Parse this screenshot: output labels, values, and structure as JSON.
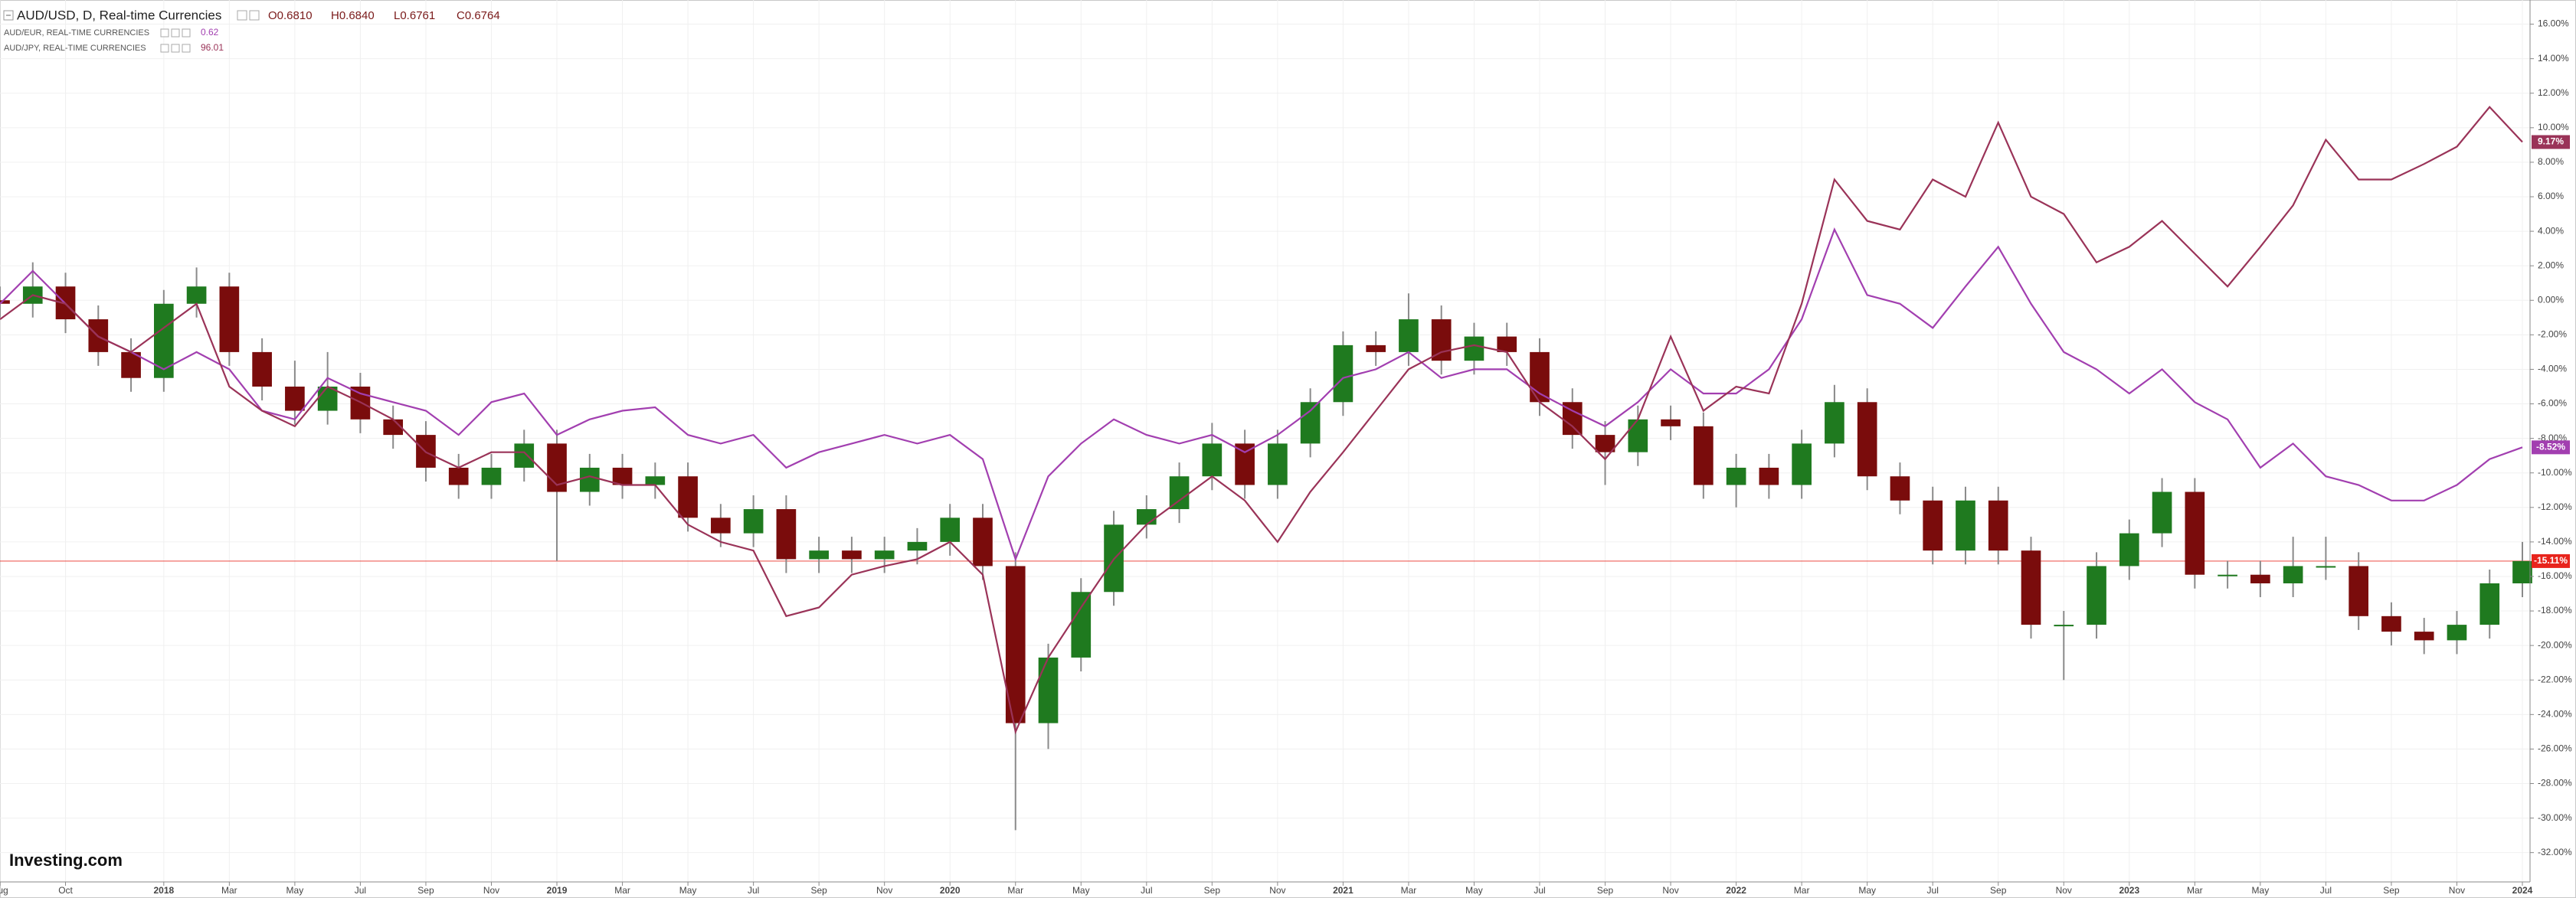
{
  "chart_data": {
    "type": "candlestick",
    "title": "AUD/USD, D, Real-time Currencies",
    "ohlc": [
      "O0.6810",
      "H0.6840",
      "L0.6761",
      "C0.6764"
    ],
    "watermark": "Investing.com",
    "grid": true,
    "x": [
      "2017-08",
      "2017-09",
      "2017-10",
      "2017-11",
      "2017-12",
      "2018-01",
      "2018-02",
      "2018-03",
      "2018-04",
      "2018-05",
      "2018-06",
      "2018-07",
      "2018-08",
      "2018-09",
      "2018-10",
      "2018-11",
      "2018-12",
      "2019-01",
      "2019-02",
      "2019-03",
      "2019-04",
      "2019-05",
      "2019-06",
      "2019-07",
      "2019-08",
      "2019-09",
      "2019-10",
      "2019-11",
      "2019-12",
      "2020-01",
      "2020-02",
      "2020-03",
      "2020-04",
      "2020-05",
      "2020-06",
      "2020-07",
      "2020-08",
      "2020-09",
      "2020-10",
      "2020-11",
      "2020-12",
      "2021-01",
      "2021-02",
      "2021-03",
      "2021-04",
      "2021-05",
      "2021-06",
      "2021-07",
      "2021-08",
      "2021-09",
      "2021-10",
      "2021-11",
      "2021-12",
      "2022-01",
      "2022-02",
      "2022-03",
      "2022-04",
      "2022-05",
      "2022-06",
      "2022-07",
      "2022-08",
      "2022-09",
      "2022-10",
      "2022-11",
      "2022-12",
      "2023-01",
      "2023-02",
      "2023-03",
      "2023-04",
      "2023-05",
      "2023-06",
      "2023-07",
      "2023-08",
      "2023-09",
      "2023-10",
      "2023-11",
      "2023-12",
      "2024-01"
    ],
    "xlim": [
      "2017-08",
      "2024-01"
    ],
    "xticks": [
      {
        "value": "2017-08",
        "label": "Aug"
      },
      {
        "value": "2017-10",
        "label": "Oct"
      },
      {
        "value": "2018-01",
        "label": "2018"
      },
      {
        "value": "2018-03",
        "label": "Mar"
      },
      {
        "value": "2018-05",
        "label": "May"
      },
      {
        "value": "2018-07",
        "label": "Jul"
      },
      {
        "value": "2018-09",
        "label": "Sep"
      },
      {
        "value": "2018-11",
        "label": "Nov"
      },
      {
        "value": "2019-01",
        "label": "2019"
      },
      {
        "value": "2019-03",
        "label": "Mar"
      },
      {
        "value": "2019-05",
        "label": "May"
      },
      {
        "value": "2019-07",
        "label": "Jul"
      },
      {
        "value": "2019-09",
        "label": "Sep"
      },
      {
        "value": "2019-11",
        "label": "Nov"
      },
      {
        "value": "2020-01",
        "label": "2020"
      },
      {
        "value": "2020-03",
        "label": "Mar"
      },
      {
        "value": "2020-05",
        "label": "May"
      },
      {
        "value": "2020-07",
        "label": "Jul"
      },
      {
        "value": "2020-09",
        "label": "Sep"
      },
      {
        "value": "2020-11",
        "label": "Nov"
      },
      {
        "value": "2021-01",
        "label": "2021"
      },
      {
        "value": "2021-03",
        "label": "Mar"
      },
      {
        "value": "2021-05",
        "label": "May"
      },
      {
        "value": "2021-07",
        "label": "Jul"
      },
      {
        "value": "2021-09",
        "label": "Sep"
      },
      {
        "value": "2021-11",
        "label": "Nov"
      },
      {
        "value": "2022-01",
        "label": "2022"
      },
      {
        "value": "2022-03",
        "label": "Mar"
      },
      {
        "value": "2022-05",
        "label": "May"
      },
      {
        "value": "2022-07",
        "label": "Jul"
      },
      {
        "value": "2022-09",
        "label": "Sep"
      },
      {
        "value": "2022-11",
        "label": "Nov"
      },
      {
        "value": "2023-01",
        "label": "2023"
      },
      {
        "value": "2023-03",
        "label": "Mar"
      },
      {
        "value": "2023-05",
        "label": "May"
      },
      {
        "value": "2023-07",
        "label": "Jul"
      },
      {
        "value": "2023-09",
        "label": "Sep"
      },
      {
        "value": "2023-11",
        "label": "Nov"
      },
      {
        "value": "2024-01",
        "label": "2024"
      }
    ],
    "ylim": [
      -33.7,
      17.4
    ],
    "yticks": [
      {
        "value": 16,
        "label": "16.00%"
      },
      {
        "value": 14,
        "label": "14.00%"
      },
      {
        "value": 12,
        "label": "12.00%"
      },
      {
        "value": 10,
        "label": "10.00%"
      },
      {
        "value": 8,
        "label": "8.00%"
      },
      {
        "value": 6,
        "label": "6.00%"
      },
      {
        "value": 4,
        "label": "4.00%"
      },
      {
        "value": 2,
        "label": "2.00%"
      },
      {
        "value": 0,
        "label": "0.00%"
      },
      {
        "value": -2,
        "label": "-2.00%"
      },
      {
        "value": -4,
        "label": "-4.00%"
      },
      {
        "value": -6,
        "label": "-6.00%"
      },
      {
        "value": -8,
        "label": "-8.00%"
      },
      {
        "value": -10,
        "label": "-10.00%"
      },
      {
        "value": -12,
        "label": "-12.00%"
      },
      {
        "value": -14,
        "label": "-14.00%"
      },
      {
        "value": -16,
        "label": "-16.00%"
      },
      {
        "value": -18,
        "label": "-18.00%"
      },
      {
        "value": -20,
        "label": "-20.00%"
      },
      {
        "value": -22,
        "label": "-22.00%"
      },
      {
        "value": -24,
        "label": "-24.00%"
      },
      {
        "value": -26,
        "label": "-26.00%"
      },
      {
        "value": -28,
        "label": "-28.00%"
      },
      {
        "value": -30,
        "label": "-30.00%"
      },
      {
        "value": -32,
        "label": "-32.00%"
      }
    ],
    "series": [
      {
        "name": "AUD/USD, D, Real-time Currencies",
        "type": "candlestick",
        "up_color": "#1f7a1f",
        "down_color": "#7a0c0c",
        "wick_color": "#8a8a8a",
        "color": "#e8241c",
        "last_label": "-15.11%",
        "open": [
          0.0,
          -0.2,
          0.8,
          -1.1,
          -3.0,
          -4.5,
          -0.2,
          0.8,
          -3.0,
          -5.0,
          -6.4,
          -5.0,
          -6.9,
          -7.8,
          -9.7,
          -10.7,
          -9.7,
          -8.3,
          -11.1,
          -9.7,
          -10.7,
          -10.2,
          -12.6,
          -13.5,
          -12.1,
          -15.0,
          -14.5,
          -15.0,
          -14.5,
          -14.0,
          -12.6,
          -15.4,
          -24.5,
          -20.7,
          -16.9,
          -13.0,
          -12.1,
          -10.2,
          -8.3,
          -10.7,
          -8.3,
          -5.9,
          -2.6,
          -3.0,
          -1.1,
          -3.5,
          -2.1,
          -3.0,
          -5.9,
          -7.8,
          -8.8,
          -6.9,
          -7.3,
          -10.7,
          -9.7,
          -10.7,
          -8.3,
          -5.9,
          -10.2,
          -11.6,
          -14.5,
          -11.6,
          -14.5,
          -18.8,
          -18.8,
          -15.4,
          -13.5,
          -11.1,
          -15.9,
          -15.9,
          -16.4,
          -15.4,
          -15.4,
          -18.3,
          -19.2,
          -19.7,
          -18.8,
          -16.4
        ],
        "high": [
          0.8,
          2.2,
          1.6,
          -0.3,
          -2.2,
          0.6,
          1.9,
          1.6,
          -2.2,
          -3.5,
          -3.0,
          -4.2,
          -6.1,
          -7.0,
          -8.9,
          -8.9,
          -7.5,
          -7.5,
          -8.9,
          -8.9,
          -9.4,
          -9.4,
          -11.8,
          -11.3,
          -11.3,
          -13.7,
          -13.7,
          -13.7,
          -13.2,
          -11.8,
          -11.8,
          -14.6,
          -19.9,
          -16.1,
          -12.2,
          -11.3,
          -9.4,
          -7.1,
          -7.5,
          -7.5,
          -5.1,
          -1.8,
          -1.8,
          0.4,
          -0.3,
          -1.3,
          -1.3,
          -2.2,
          -5.1,
          -7.0,
          -6.1,
          -6.1,
          -6.5,
          -8.9,
          -8.9,
          -7.5,
          -4.9,
          -5.1,
          -9.4,
          -10.8,
          -10.8,
          -10.8,
          -13.7,
          -18.0,
          -14.6,
          -12.7,
          -10.3,
          -10.3,
          -15.1,
          -15.1,
          -13.7,
          -13.7,
          -14.6,
          -17.5,
          -18.4,
          -18.0,
          -15.6,
          -14.0
        ],
        "low": [
          -1.0,
          -1.0,
          -1.9,
          -3.8,
          -5.3,
          -5.3,
          -1.0,
          -3.8,
          -5.8,
          -7.2,
          -7.2,
          -7.7,
          -8.6,
          -10.5,
          -11.5,
          -11.5,
          -10.5,
          -15.1,
          -11.9,
          -11.5,
          -11.5,
          -13.4,
          -14.3,
          -14.3,
          -15.8,
          -15.8,
          -15.8,
          -15.8,
          -15.3,
          -14.8,
          -16.2,
          -30.7,
          -26.0,
          -21.5,
          -17.7,
          -13.8,
          -12.9,
          -11.0,
          -11.5,
          -11.5,
          -9.1,
          -6.7,
          -3.8,
          -3.8,
          -4.3,
          -4.3,
          -3.8,
          -6.7,
          -8.6,
          -10.7,
          -9.6,
          -8.1,
          -11.5,
          -12.0,
          -11.5,
          -11.5,
          -9.1,
          -11.0,
          -12.4,
          -15.3,
          -15.3,
          -15.3,
          -19.6,
          -22.0,
          -19.6,
          -16.2,
          -14.3,
          -16.7,
          -16.7,
          -17.2,
          -17.2,
          -16.2,
          -19.1,
          -20.0,
          -20.5,
          -20.5,
          -19.6,
          -17.2
        ],
        "close": [
          -0.2,
          0.8,
          -1.1,
          -3.0,
          -4.5,
          -0.2,
          0.8,
          -3.0,
          -5.0,
          -6.4,
          -5.0,
          -6.9,
          -7.8,
          -9.7,
          -10.7,
          -9.7,
          -8.3,
          -11.1,
          -9.7,
          -10.7,
          -10.2,
          -12.6,
          -13.5,
          -12.1,
          -15.0,
          -14.5,
          -15.0,
          -14.5,
          -14.0,
          -12.6,
          -15.4,
          -24.5,
          -20.7,
          -16.9,
          -13.0,
          -12.1,
          -10.2,
          -8.3,
          -10.7,
          -8.3,
          -5.9,
          -2.6,
          -3.0,
          -1.1,
          -3.5,
          -2.1,
          -3.0,
          -5.9,
          -7.8,
          -8.8,
          -6.9,
          -7.3,
          -10.7,
          -9.7,
          -10.7,
          -8.3,
          -5.9,
          -10.2,
          -11.6,
          -14.5,
          -11.6,
          -14.5,
          -18.8,
          -18.8,
          -15.4,
          -13.5,
          -11.1,
          -15.9,
          -15.9,
          -16.4,
          -15.4,
          -15.4,
          -18.3,
          -19.2,
          -19.7,
          -18.8,
          -16.4,
          -15.11
        ]
      },
      {
        "name": "AUD/EUR, REAL-TIME CURRENCIES",
        "type": "line",
        "color": "#a23fb0",
        "legend_value": "0.62",
        "last_label": "-8.52%",
        "values": [
          -0.2,
          1.7,
          -0.2,
          -2.1,
          -3.0,
          -4.0,
          -3.0,
          -4.0,
          -6.4,
          -6.9,
          -4.5,
          -5.4,
          -5.9,
          -6.4,
          -7.8,
          -5.9,
          -5.4,
          -7.8,
          -6.9,
          -6.4,
          -6.2,
          -7.8,
          -8.3,
          -7.8,
          -9.7,
          -8.8,
          -8.3,
          -7.8,
          -8.3,
          -7.8,
          -9.2,
          -15.0,
          -10.2,
          -8.3,
          -6.9,
          -7.8,
          -8.3,
          -7.8,
          -8.8,
          -7.8,
          -6.4,
          -4.5,
          -4.0,
          -3.0,
          -4.5,
          -4.0,
          -4.0,
          -5.4,
          -6.4,
          -7.3,
          -5.9,
          -4.0,
          -5.4,
          -5.4,
          -4.0,
          -1.1,
          4.1,
          0.3,
          -0.2,
          -1.6,
          0.8,
          3.1,
          -0.2,
          -3.0,
          -4.0,
          -5.4,
          -4.0,
          -5.9,
          -6.9,
          -9.7,
          -8.3,
          -10.2,
          -10.7,
          -11.6,
          -11.6,
          -10.7,
          -9.2,
          -8.52
        ]
      },
      {
        "name": "AUD/JPY, REAL-TIME CURRENCIES",
        "type": "line",
        "color": "#9a3358",
        "legend_value": "96.01",
        "last_label": "9.17%",
        "values": [
          -1.1,
          0.3,
          -0.2,
          -2.1,
          -3.0,
          -1.6,
          -0.2,
          -5.0,
          -6.4,
          -7.3,
          -5.0,
          -5.9,
          -6.9,
          -8.8,
          -9.7,
          -8.8,
          -8.8,
          -10.7,
          -10.2,
          -10.7,
          -10.7,
          -13.0,
          -14.0,
          -14.5,
          -18.3,
          -17.8,
          -15.9,
          -15.4,
          -15.0,
          -14.0,
          -15.9,
          -25.0,
          -20.7,
          -17.8,
          -15.0,
          -13.0,
          -11.6,
          -10.2,
          -11.6,
          -14.0,
          -11.1,
          -8.8,
          -6.4,
          -4.0,
          -3.0,
          -2.6,
          -3.0,
          -5.9,
          -7.3,
          -9.2,
          -6.9,
          -2.1,
          -6.4,
          -5.0,
          -5.4,
          -0.2,
          7.0,
          4.6,
          4.1,
          7.0,
          6.0,
          10.3,
          6.0,
          5.0,
          2.2,
          3.1,
          4.6,
          2.7,
          0.8,
          3.1,
          5.5,
          9.3,
          7.0,
          7.0,
          7.9,
          8.9,
          11.2,
          9.17
        ]
      }
    ]
  }
}
